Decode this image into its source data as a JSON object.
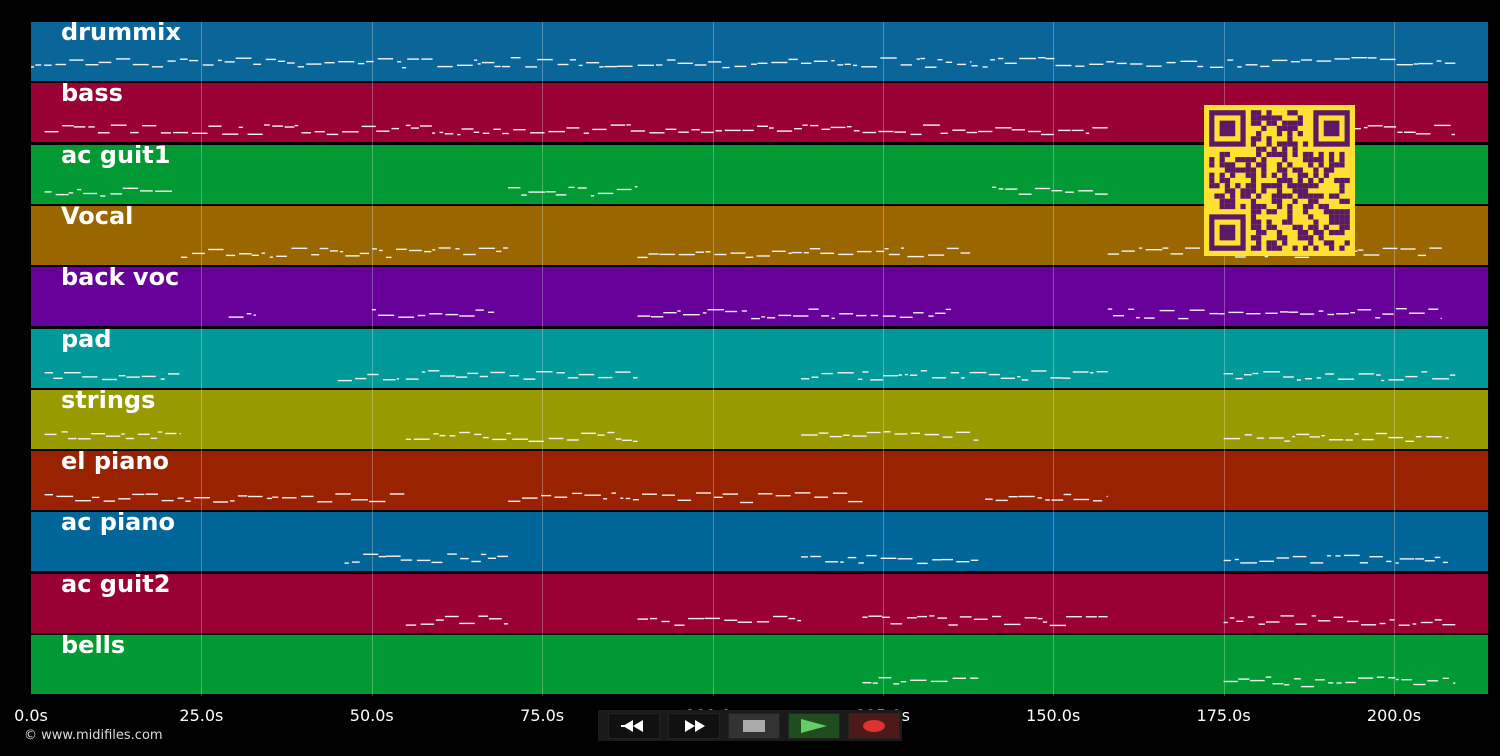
{
  "tracks": [
    {
      "name": "drummix",
      "color": "#0a6699",
      "segments": [
        [
          0,
          68
        ],
        [
          68,
          138
        ],
        [
          138,
          172
        ],
        [
          173,
          209
        ]
      ]
    },
    {
      "name": "bass",
      "color": "#990033",
      "segments": [
        [
          2,
          54
        ],
        [
          55,
          88
        ],
        [
          88,
          158
        ],
        [
          175,
          209
        ]
      ]
    },
    {
      "name": "ac guit1",
      "color": "#009933",
      "segments": [
        [
          2,
          21
        ],
        [
          70,
          89
        ],
        [
          141,
          158
        ]
      ]
    },
    {
      "name": "Vocal",
      "color": "#996600",
      "segments": [
        [
          22,
          70
        ],
        [
          89,
          138
        ],
        [
          158,
          207
        ]
      ]
    },
    {
      "name": "back voc",
      "color": "#660099",
      "segments": [
        [
          29,
          33
        ],
        [
          50,
          68
        ],
        [
          89,
          135
        ],
        [
          158,
          207
        ]
      ]
    },
    {
      "name": "pad",
      "color": "#009999",
      "segments": [
        [
          2,
          22
        ],
        [
          45,
          54
        ],
        [
          55,
          89
        ],
        [
          113,
          122
        ],
        [
          122,
          158
        ],
        [
          175,
          209
        ]
      ]
    },
    {
      "name": "strings",
      "color": "#999900",
      "segments": [
        [
          2,
          22
        ],
        [
          55,
          89
        ],
        [
          113,
          139
        ],
        [
          175,
          208
        ]
      ]
    },
    {
      "name": "el piano",
      "color": "#992200",
      "segments": [
        [
          2,
          55
        ],
        [
          70,
          122
        ],
        [
          140,
          158
        ]
      ]
    },
    {
      "name": "ac piano",
      "color": "#006699",
      "segments": [
        [
          46,
          70
        ],
        [
          113,
          139
        ],
        [
          175,
          208
        ]
      ]
    },
    {
      "name": "ac guit2",
      "color": "#990033",
      "segments": [
        [
          55,
          70
        ],
        [
          89,
          113
        ],
        [
          122,
          158
        ],
        [
          175,
          209
        ]
      ]
    },
    {
      "name": "bells",
      "color": "#009933",
      "segments": [
        [
          122,
          139
        ],
        [
          175,
          209
        ]
      ]
    }
  ],
  "timeline": {
    "ticks": [
      "0.0s",
      "25.0s",
      "50.0s",
      "75.0s",
      "100.0s",
      "125.0s",
      "150.0s",
      "175.0s",
      "200.0s"
    ],
    "max_seconds": 213.5
  },
  "copyright": "© www.midifiles.com",
  "transport": {
    "buttons": [
      {
        "name": "rewind",
        "icon": "rewind-icon",
        "bg": "#111111"
      },
      {
        "name": "fast-forward",
        "icon": "fast-forward-icon",
        "bg": "#111111"
      },
      {
        "name": "stop",
        "icon": "stop-icon",
        "bg": "#333333"
      },
      {
        "name": "play",
        "icon": "play-icon",
        "bg": "#1f4d1f"
      },
      {
        "name": "record",
        "icon": "record-icon",
        "bg": "#4d1a1a"
      }
    ]
  },
  "qr": {
    "fg": "#5a1a66",
    "bg": "#ffe033"
  }
}
